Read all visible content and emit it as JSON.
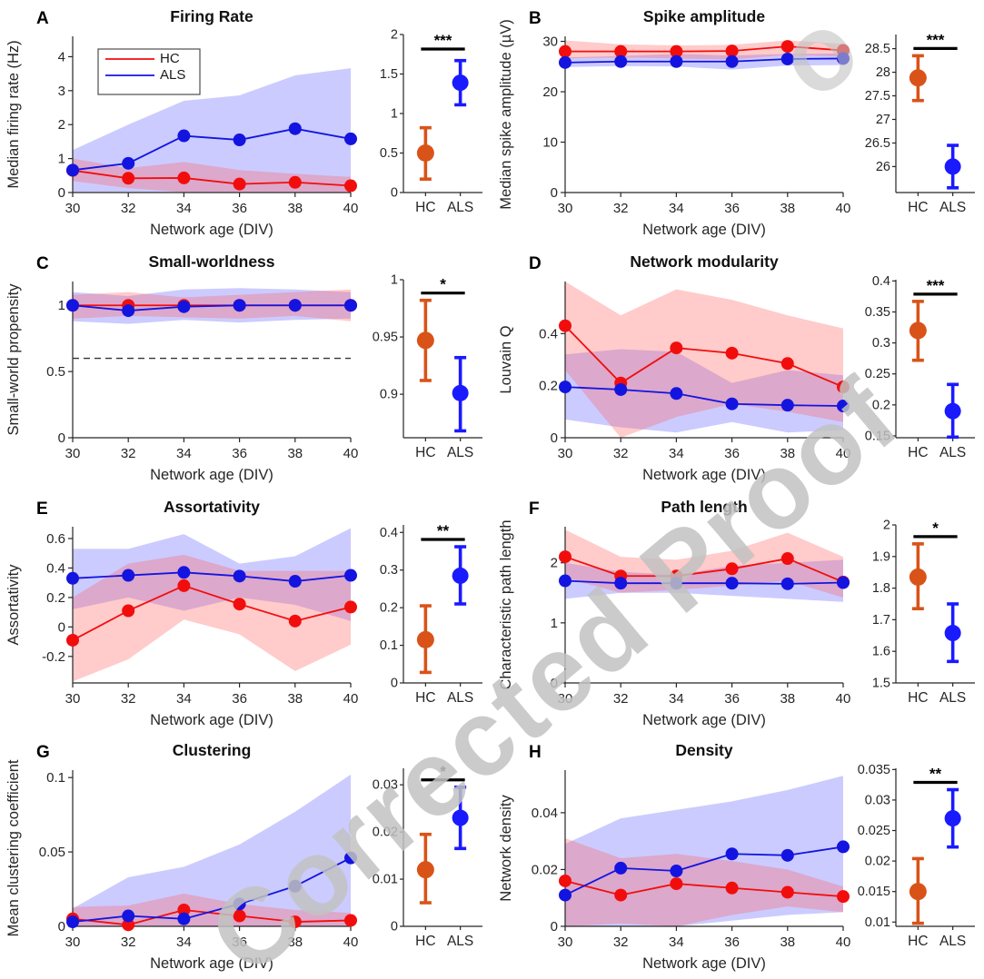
{
  "watermark": {
    "text": "Corrected Proof",
    "fragment": "o",
    "color": "#c2c2c2"
  },
  "colors": {
    "hc_line": "#f20d0d",
    "als_line": "#1414e0",
    "hc_band": "#ff6060",
    "als_band": "#6262ff",
    "band_opacity": 0.33,
    "inset_hc": "#d95319",
    "inset_als": "#1a1aff",
    "axis": "#262626",
    "significance": "#000000",
    "dashed": "#333333"
  },
  "legend": {
    "entries": [
      "HC",
      "ALS"
    ]
  },
  "chart_data": [
    {
      "letter": "A",
      "type": "line",
      "title": "Firing Rate",
      "xlabel": "Network age (DIV)",
      "ylabel": "Median firing rate (Hz)",
      "x": [
        30,
        32,
        34,
        36,
        38,
        40
      ],
      "ylim": [
        0,
        4.6
      ],
      "yticks": [
        0,
        1,
        2,
        3,
        4
      ],
      "legend": {
        "show": true
      },
      "dashed_hline": null,
      "series": [
        {
          "name": "HC",
          "key": "hc",
          "values": [
            0.65,
            0.42,
            0.43,
            0.25,
            0.3,
            0.2
          ],
          "band_upper": [
            1.0,
            0.72,
            0.9,
            0.66,
            0.55,
            0.46
          ],
          "band_lower": [
            0.34,
            0.13,
            0.01,
            0.01,
            0.01,
            0.01
          ]
        },
        {
          "name": "ALS",
          "key": "als",
          "values": [
            0.66,
            0.86,
            1.67,
            1.55,
            1.88,
            1.58
          ],
          "band_upper": [
            1.25,
            2.0,
            2.7,
            2.86,
            3.45,
            3.66
          ],
          "band_lower": [
            0.02,
            0.02,
            0.02,
            0.02,
            0.02,
            0.02
          ]
        }
      ],
      "inset": {
        "categories": [
          "HC",
          "ALS"
        ],
        "ylim": [
          0,
          2
        ],
        "yticks": [
          0,
          0.5,
          1,
          1.5,
          2
        ],
        "points": [
          {
            "name": "HC",
            "mean": 0.5,
            "lo": 0.17,
            "hi": 0.82
          },
          {
            "name": "ALS",
            "mean": 1.39,
            "lo": 1.11,
            "hi": 1.67
          }
        ],
        "significance": "***"
      }
    },
    {
      "letter": "B",
      "type": "line",
      "title": "Spike amplitude",
      "xlabel": "Network age (DIV)",
      "ylabel": "Median spike amplitude (µV)",
      "x": [
        30,
        32,
        34,
        36,
        38,
        40
      ],
      "ylim": [
        0,
        31
      ],
      "yticks": [
        0,
        10,
        20,
        30
      ],
      "legend": {
        "show": false
      },
      "dashed_hline": null,
      "series": [
        {
          "name": "HC",
          "key": "hc",
          "values": [
            28.0,
            28.0,
            28.0,
            28.1,
            29.0,
            28.2
          ],
          "band_upper": [
            30.2,
            29.4,
            29.2,
            29.3,
            30.2,
            29.5
          ],
          "band_lower": [
            26.6,
            26.8,
            26.6,
            26.4,
            27.3,
            27.0
          ]
        },
        {
          "name": "ALS",
          "key": "als",
          "values": [
            25.8,
            26.0,
            26.0,
            26.0,
            26.5,
            26.6
          ],
          "band_upper": [
            26.8,
            27.1,
            27.5,
            27.2,
            27.5,
            27.6
          ],
          "band_lower": [
            24.9,
            25.1,
            25.0,
            24.4,
            25.2,
            25.3
          ]
        }
      ],
      "inset": {
        "categories": [
          "HC",
          "ALS"
        ],
        "ylim": [
          25.45,
          28.8
        ],
        "yticks": [
          26,
          26.5,
          27,
          27.5,
          28,
          28.5
        ],
        "points": [
          {
            "name": "HC",
            "mean": 27.88,
            "lo": 27.4,
            "hi": 28.35
          },
          {
            "name": "ALS",
            "mean": 26.0,
            "lo": 25.55,
            "hi": 26.45
          }
        ],
        "significance": "***"
      }
    },
    {
      "letter": "C",
      "type": "line",
      "title": "Small-worldness",
      "xlabel": "Network age (DIV)",
      "ylabel": "Small-world propensity",
      "x": [
        30,
        32,
        34,
        36,
        38,
        40
      ],
      "ylim": [
        0,
        1.18
      ],
      "yticks": [
        0,
        0.5,
        1
      ],
      "legend": {
        "show": false
      },
      "dashed_hline": 0.6,
      "series": [
        {
          "name": "HC",
          "key": "hc",
          "values": [
            1.0,
            1.0,
            1.0,
            1.0,
            1.0,
            1.0
          ],
          "band_upper": [
            1.08,
            1.1,
            1.06,
            1.08,
            1.1,
            1.12
          ],
          "band_lower": [
            0.9,
            0.92,
            0.91,
            0.9,
            0.92,
            0.88
          ]
        },
        {
          "name": "ALS",
          "key": "als",
          "values": [
            1.0,
            0.96,
            0.99,
            1.0,
            1.0,
            1.0
          ],
          "band_upper": [
            1.1,
            1.07,
            1.12,
            1.13,
            1.12,
            1.1
          ],
          "band_lower": [
            0.88,
            0.86,
            0.89,
            0.87,
            0.89,
            0.9
          ]
        }
      ],
      "inset": {
        "categories": [
          "HC",
          "ALS"
        ],
        "ylim": [
          0.862,
          1.0
        ],
        "yticks": [
          0.9,
          0.95,
          1
        ],
        "points": [
          {
            "name": "HC",
            "mean": 0.947,
            "lo": 0.912,
            "hi": 0.982
          },
          {
            "name": "ALS",
            "mean": 0.901,
            "lo": 0.868,
            "hi": 0.932
          }
        ],
        "significance": "*"
      }
    },
    {
      "letter": "D",
      "type": "line",
      "title": "Network modularity",
      "xlabel": "Network age (DIV)",
      "ylabel": "Louvain Q",
      "x": [
        30,
        32,
        34,
        36,
        38,
        40
      ],
      "ylim": [
        0,
        0.6
      ],
      "yticks": [
        0,
        0.2,
        0.4
      ],
      "legend": {
        "show": false
      },
      "dashed_hline": null,
      "series": [
        {
          "name": "HC",
          "key": "hc",
          "values": [
            0.43,
            0.21,
            0.345,
            0.325,
            0.285,
            0.195
          ],
          "band_upper": [
            0.6,
            0.47,
            0.57,
            0.53,
            0.47,
            0.42
          ],
          "band_lower": [
            0.26,
            0.0,
            0.08,
            0.13,
            0.1,
            0.06
          ]
        },
        {
          "name": "ALS",
          "key": "als",
          "values": [
            0.195,
            0.185,
            0.17,
            0.13,
            0.125,
            0.122
          ],
          "band_upper": [
            0.32,
            0.34,
            0.33,
            0.21,
            0.26,
            0.24
          ],
          "band_lower": [
            0.07,
            0.04,
            0.02,
            0.06,
            0.02,
            0.03
          ]
        }
      ],
      "inset": {
        "categories": [
          "HC",
          "ALS"
        ],
        "ylim": [
          0.147,
          0.402
        ],
        "yticks": [
          0.15,
          0.2,
          0.25,
          0.3,
          0.35,
          0.4
        ],
        "points": [
          {
            "name": "HC",
            "mean": 0.32,
            "lo": 0.272,
            "hi": 0.367
          },
          {
            "name": "ALS",
            "mean": 0.19,
            "lo": 0.148,
            "hi": 0.233
          }
        ],
        "significance": "***"
      }
    },
    {
      "letter": "E",
      "type": "line",
      "title": "Assortativity",
      "xlabel": "Network age (DIV)",
      "ylabel": "Assortativity",
      "x": [
        30,
        32,
        34,
        36,
        38,
        40
      ],
      "ylim": [
        -0.38,
        0.68
      ],
      "yticks": [
        -0.2,
        0,
        0.2,
        0.4,
        0.6
      ],
      "legend": {
        "show": false
      },
      "dashed_hline": null,
      "series": [
        {
          "name": "HC",
          "key": "hc",
          "values": [
            -0.09,
            0.11,
            0.28,
            0.155,
            0.04,
            0.135
          ],
          "band_upper": [
            0.2,
            0.43,
            0.49,
            0.38,
            0.38,
            0.38
          ],
          "band_lower": [
            -0.37,
            -0.22,
            0.05,
            -0.05,
            -0.3,
            -0.12
          ]
        },
        {
          "name": "ALS",
          "key": "als",
          "values": [
            0.33,
            0.35,
            0.37,
            0.345,
            0.31,
            0.35
          ],
          "band_upper": [
            0.53,
            0.53,
            0.63,
            0.43,
            0.48,
            0.67
          ],
          "band_lower": [
            0.12,
            0.2,
            0.11,
            0.2,
            0.15,
            0.04
          ]
        }
      ],
      "inset": {
        "categories": [
          "HC",
          "ALS"
        ],
        "ylim": [
          0,
          0.42
        ],
        "yticks": [
          0,
          0.1,
          0.2,
          0.3,
          0.4
        ],
        "points": [
          {
            "name": "HC",
            "mean": 0.115,
            "lo": 0.028,
            "hi": 0.205
          },
          {
            "name": "ALS",
            "mean": 0.285,
            "lo": 0.21,
            "hi": 0.362
          }
        ],
        "significance": "**"
      }
    },
    {
      "letter": "F",
      "type": "line",
      "title": "Path length",
      "xlabel": "Network age (DIV)",
      "ylabel": "Characteristic path length",
      "x": [
        30,
        32,
        34,
        36,
        38,
        40
      ],
      "ylim": [
        0,
        2.6
      ],
      "yticks": [
        0,
        1,
        2
      ],
      "legend": {
        "show": false
      },
      "dashed_hline": null,
      "series": [
        {
          "name": "HC",
          "key": "hc",
          "values": [
            2.1,
            1.78,
            1.78,
            1.9,
            2.07,
            1.68
          ],
          "band_upper": [
            2.55,
            2.1,
            2.05,
            2.2,
            2.5,
            2.1
          ],
          "band_lower": [
            1.75,
            1.5,
            1.55,
            1.62,
            1.7,
            1.42
          ]
        },
        {
          "name": "ALS",
          "key": "als",
          "values": [
            1.7,
            1.66,
            1.66,
            1.66,
            1.65,
            1.67
          ],
          "band_upper": [
            2.0,
            1.85,
            1.8,
            1.95,
            2.0,
            2.05
          ],
          "band_lower": [
            1.4,
            1.5,
            1.5,
            1.45,
            1.4,
            1.35
          ]
        }
      ],
      "inset": {
        "categories": [
          "HC",
          "ALS"
        ],
        "ylim": [
          1.5,
          2.0
        ],
        "yticks": [
          1.5,
          1.6,
          1.7,
          1.8,
          1.9,
          2
        ],
        "points": [
          {
            "name": "HC",
            "mean": 1.835,
            "lo": 1.735,
            "hi": 1.94
          },
          {
            "name": "ALS",
            "mean": 1.658,
            "lo": 1.568,
            "hi": 1.75
          }
        ],
        "significance": "*"
      }
    },
    {
      "letter": "G",
      "type": "line",
      "title": "Clustering",
      "xlabel": "Network age (DIV)",
      "ylabel": "Mean clustering coefficient",
      "x": [
        30,
        32,
        34,
        36,
        38,
        40
      ],
      "ylim": [
        0,
        0.105
      ],
      "yticks": [
        0,
        0.05,
        0.1
      ],
      "legend": {
        "show": false
      },
      "dashed_hline": null,
      "series": [
        {
          "name": "HC",
          "key": "hc",
          "values": [
            0.005,
            0.001,
            0.011,
            0.007,
            0.003,
            0.004
          ],
          "band_upper": [
            0.013,
            0.014,
            0.022,
            0.015,
            0.011,
            0.009
          ],
          "band_lower": [
            0,
            0,
            0,
            0,
            0,
            0
          ]
        },
        {
          "name": "ALS",
          "key": "als",
          "values": [
            0.003,
            0.007,
            0.005,
            0.015,
            0.027,
            0.046
          ],
          "band_upper": [
            0.012,
            0.033,
            0.04,
            0.055,
            0.077,
            0.102
          ],
          "band_lower": [
            0,
            0,
            0,
            0,
            0,
            0
          ]
        }
      ],
      "inset": {
        "categories": [
          "HC",
          "ALS"
        ],
        "ylim": [
          0,
          0.0335
        ],
        "yticks": [
          0,
          0.01,
          0.02,
          0.03
        ],
        "points": [
          {
            "name": "HC",
            "mean": 0.012,
            "lo": 0.005,
            "hi": 0.0195
          },
          {
            "name": "ALS",
            "mean": 0.023,
            "lo": 0.0165,
            "hi": 0.0295
          }
        ],
        "significance": "*"
      }
    },
    {
      "letter": "H",
      "type": "line",
      "title": "Density",
      "xlabel": "Network age (DIV)",
      "ylabel": "Network density",
      "x": [
        30,
        32,
        34,
        36,
        38,
        40
      ],
      "ylim": [
        0,
        0.055
      ],
      "yticks": [
        0,
        0.02,
        0.04
      ],
      "legend": {
        "show": false
      },
      "dashed_hline": null,
      "series": [
        {
          "name": "HC",
          "key": "hc",
          "values": [
            0.016,
            0.011,
            0.015,
            0.0135,
            0.012,
            0.0105
          ],
          "band_upper": [
            0.031,
            0.024,
            0.0255,
            0.023,
            0.02,
            0.014
          ],
          "band_lower": [
            0,
            0.001,
            0,
            0.004,
            0.007,
            0.005
          ]
        },
        {
          "name": "ALS",
          "key": "als",
          "values": [
            0.011,
            0.0205,
            0.0195,
            0.0255,
            0.025,
            0.028
          ],
          "band_upper": [
            0.029,
            0.038,
            0.041,
            0.044,
            0.048,
            0.053
          ],
          "band_lower": [
            0,
            0,
            0,
            0.002,
            0.004,
            0.005
          ]
        }
      ],
      "inset": {
        "categories": [
          "HC",
          "ALS"
        ],
        "ylim": [
          0.0093,
          0.0352
        ],
        "yticks": [
          0.01,
          0.015,
          0.02,
          0.025,
          0.03,
          0.035
        ],
        "points": [
          {
            "name": "HC",
            "mean": 0.015,
            "lo": 0.0098,
            "hi": 0.0204
          },
          {
            "name": "ALS",
            "mean": 0.027,
            "lo": 0.0223,
            "hi": 0.0317
          }
        ],
        "significance": "**"
      }
    }
  ]
}
